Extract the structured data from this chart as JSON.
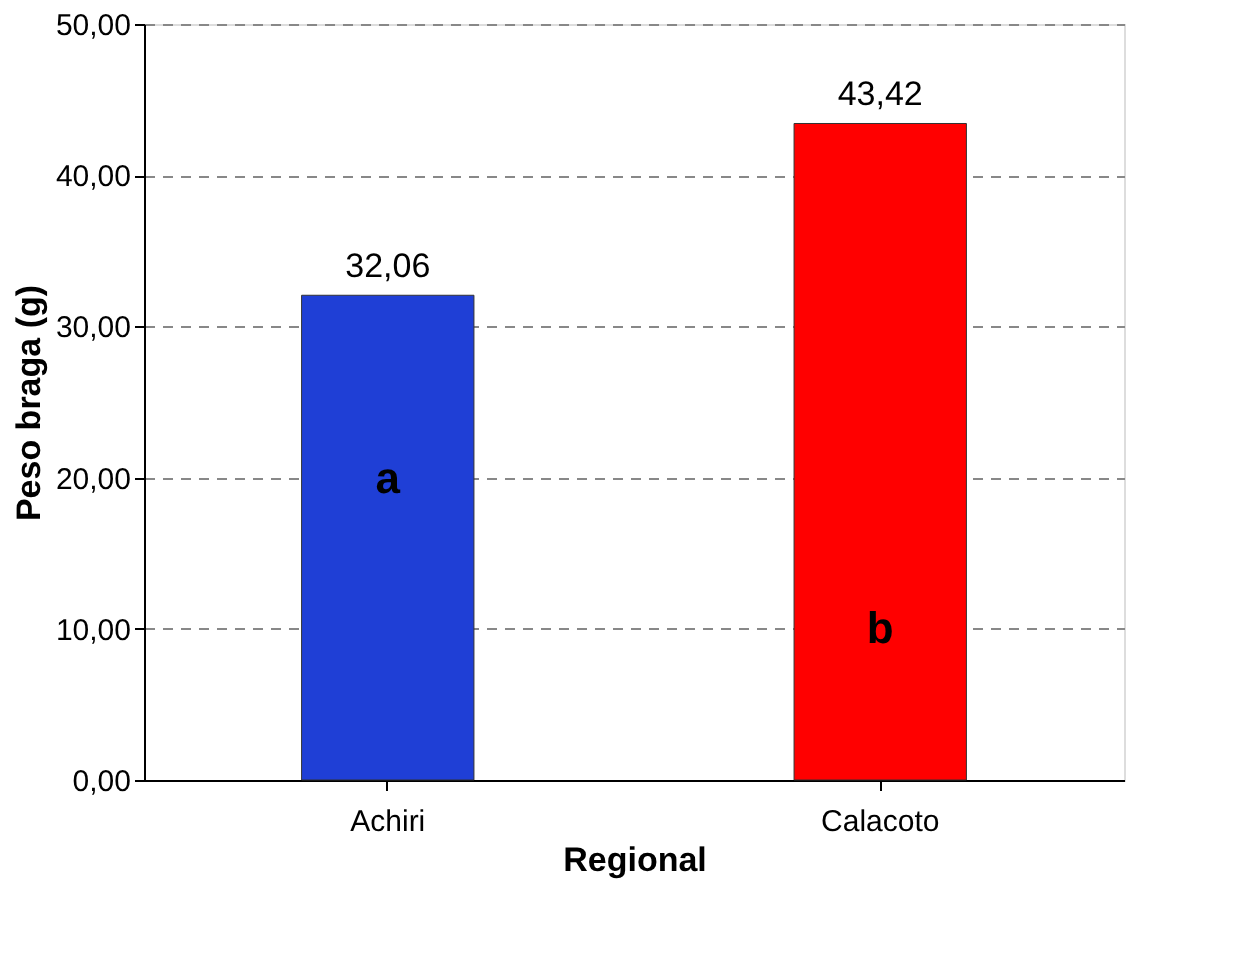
{
  "chart_data": {
    "type": "bar",
    "xlabel": "Regional",
    "ylabel": "Peso braga (g)",
    "categories": [
      "Achiri",
      "Calacoto"
    ],
    "values": [
      32.06,
      43.42
    ],
    "colors": [
      "#1f3fd6",
      "#ff0000"
    ],
    "value_labels": [
      "32,06",
      "43,42"
    ],
    "ylim": [
      0,
      50
    ],
    "yticks": [
      {
        "value": 0,
        "label": "0,00"
      },
      {
        "value": 10,
        "label": "10,00"
      },
      {
        "value": 20,
        "label": "20,00"
      },
      {
        "value": 30,
        "label": "30,00"
      },
      {
        "value": 40,
        "label": "40,00"
      },
      {
        "value": 50,
        "label": "50,00"
      }
    ],
    "annotations": [
      "a",
      "b"
    ],
    "grid": "y"
  }
}
